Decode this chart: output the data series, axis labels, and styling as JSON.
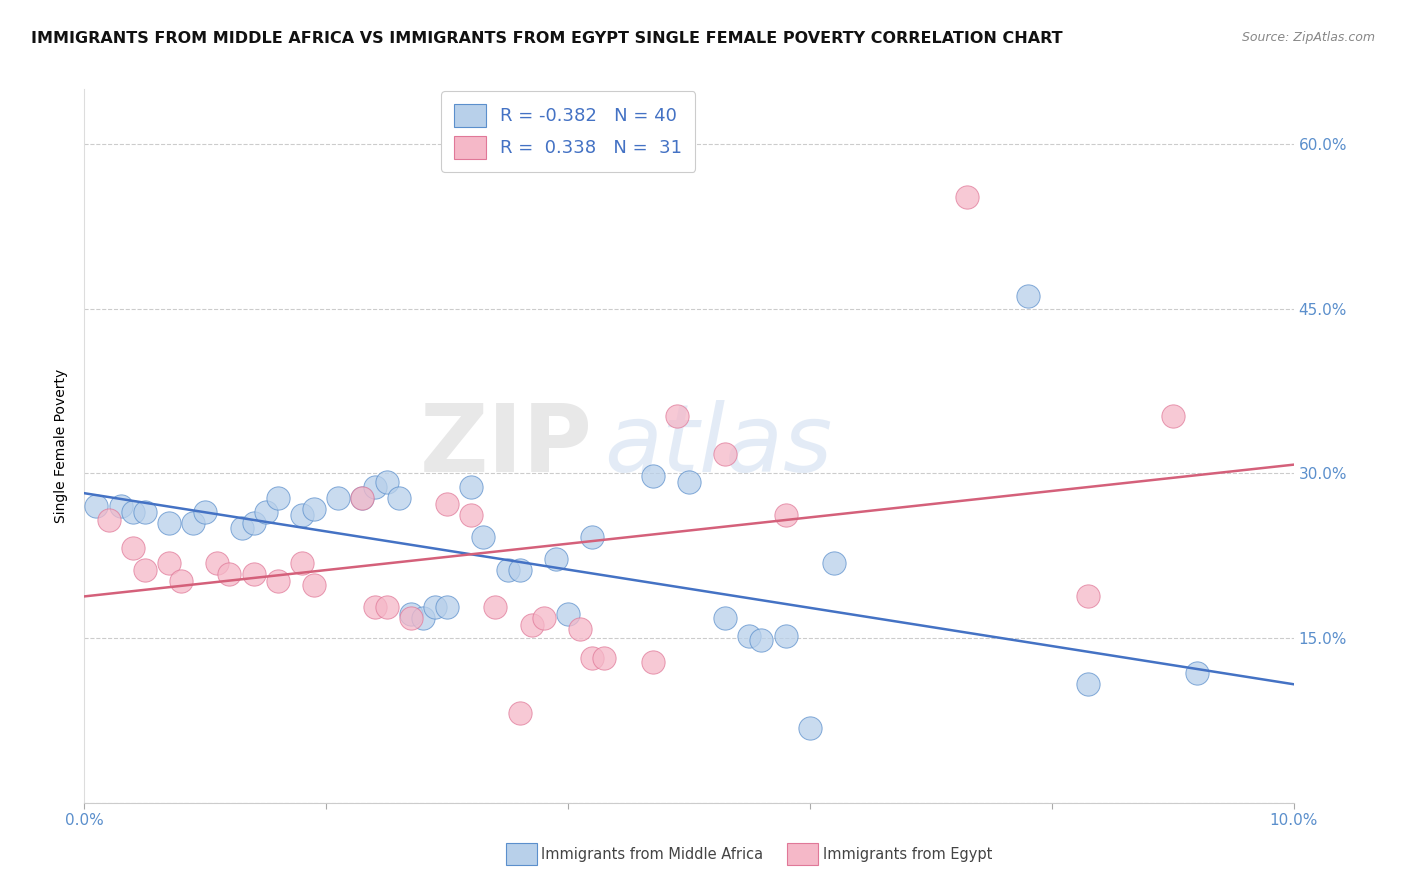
{
  "title": "IMMIGRANTS FROM MIDDLE AFRICA VS IMMIGRANTS FROM EGYPT SINGLE FEMALE POVERTY CORRELATION CHART",
  "source": "Source: ZipAtlas.com",
  "ylabel": "Single Female Poverty",
  "y_ticks": [
    0.0,
    0.15,
    0.3,
    0.45,
    0.6
  ],
  "y_tick_labels": [
    "",
    "15.0%",
    "30.0%",
    "45.0%",
    "60.0%"
  ],
  "xlim": [
    0.0,
    0.1
  ],
  "ylim": [
    0.0,
    0.65
  ],
  "legend_blue_R": "-0.382",
  "legend_blue_N": "40",
  "legend_pink_R": "0.338",
  "legend_pink_N": "31",
  "blue_fill": "#b8d0ea",
  "pink_fill": "#f5b8c8",
  "blue_edge": "#5b8fcc",
  "pink_edge": "#e07898",
  "blue_line_color": "#4472c4",
  "pink_line_color": "#d4607a",
  "tick_color": "#5b8fcc",
  "blue_points": [
    [
      0.001,
      0.27
    ],
    [
      0.003,
      0.27
    ],
    [
      0.004,
      0.265
    ],
    [
      0.005,
      0.265
    ],
    [
      0.007,
      0.255
    ],
    [
      0.009,
      0.255
    ],
    [
      0.01,
      0.265
    ],
    [
      0.013,
      0.25
    ],
    [
      0.014,
      0.255
    ],
    [
      0.015,
      0.265
    ],
    [
      0.016,
      0.278
    ],
    [
      0.018,
      0.262
    ],
    [
      0.019,
      0.268
    ],
    [
      0.021,
      0.278
    ],
    [
      0.023,
      0.278
    ],
    [
      0.024,
      0.288
    ],
    [
      0.025,
      0.292
    ],
    [
      0.026,
      0.278
    ],
    [
      0.027,
      0.172
    ],
    [
      0.028,
      0.168
    ],
    [
      0.029,
      0.178
    ],
    [
      0.03,
      0.178
    ],
    [
      0.032,
      0.288
    ],
    [
      0.033,
      0.242
    ],
    [
      0.035,
      0.212
    ],
    [
      0.036,
      0.212
    ],
    [
      0.039,
      0.222
    ],
    [
      0.04,
      0.172
    ],
    [
      0.042,
      0.242
    ],
    [
      0.047,
      0.298
    ],
    [
      0.05,
      0.292
    ],
    [
      0.053,
      0.168
    ],
    [
      0.055,
      0.152
    ],
    [
      0.056,
      0.148
    ],
    [
      0.058,
      0.152
    ],
    [
      0.06,
      0.068
    ],
    [
      0.062,
      0.218
    ],
    [
      0.078,
      0.462
    ],
    [
      0.083,
      0.108
    ],
    [
      0.092,
      0.118
    ]
  ],
  "pink_points": [
    [
      0.002,
      0.258
    ],
    [
      0.004,
      0.232
    ],
    [
      0.005,
      0.212
    ],
    [
      0.007,
      0.218
    ],
    [
      0.008,
      0.202
    ],
    [
      0.011,
      0.218
    ],
    [
      0.012,
      0.208
    ],
    [
      0.014,
      0.208
    ],
    [
      0.016,
      0.202
    ],
    [
      0.018,
      0.218
    ],
    [
      0.019,
      0.198
    ],
    [
      0.023,
      0.278
    ],
    [
      0.024,
      0.178
    ],
    [
      0.025,
      0.178
    ],
    [
      0.027,
      0.168
    ],
    [
      0.03,
      0.272
    ],
    [
      0.032,
      0.262
    ],
    [
      0.034,
      0.178
    ],
    [
      0.036,
      0.082
    ],
    [
      0.037,
      0.162
    ],
    [
      0.038,
      0.168
    ],
    [
      0.041,
      0.158
    ],
    [
      0.042,
      0.132
    ],
    [
      0.043,
      0.132
    ],
    [
      0.047,
      0.128
    ],
    [
      0.049,
      0.352
    ],
    [
      0.053,
      0.318
    ],
    [
      0.058,
      0.262
    ],
    [
      0.073,
      0.552
    ],
    [
      0.083,
      0.188
    ],
    [
      0.09,
      0.352
    ]
  ],
  "blue_line_x": [
    0.0,
    0.1
  ],
  "blue_line_y": [
    0.282,
    0.108
  ],
  "pink_line_x": [
    0.0,
    0.1
  ],
  "pink_line_y": [
    0.188,
    0.308
  ],
  "watermark_zip": "ZIP",
  "watermark_atlas": "atlas",
  "title_fontsize": 11.5,
  "axis_label_fontsize": 10,
  "tick_fontsize": 11,
  "legend_fontsize": 13,
  "source_fontsize": 9
}
